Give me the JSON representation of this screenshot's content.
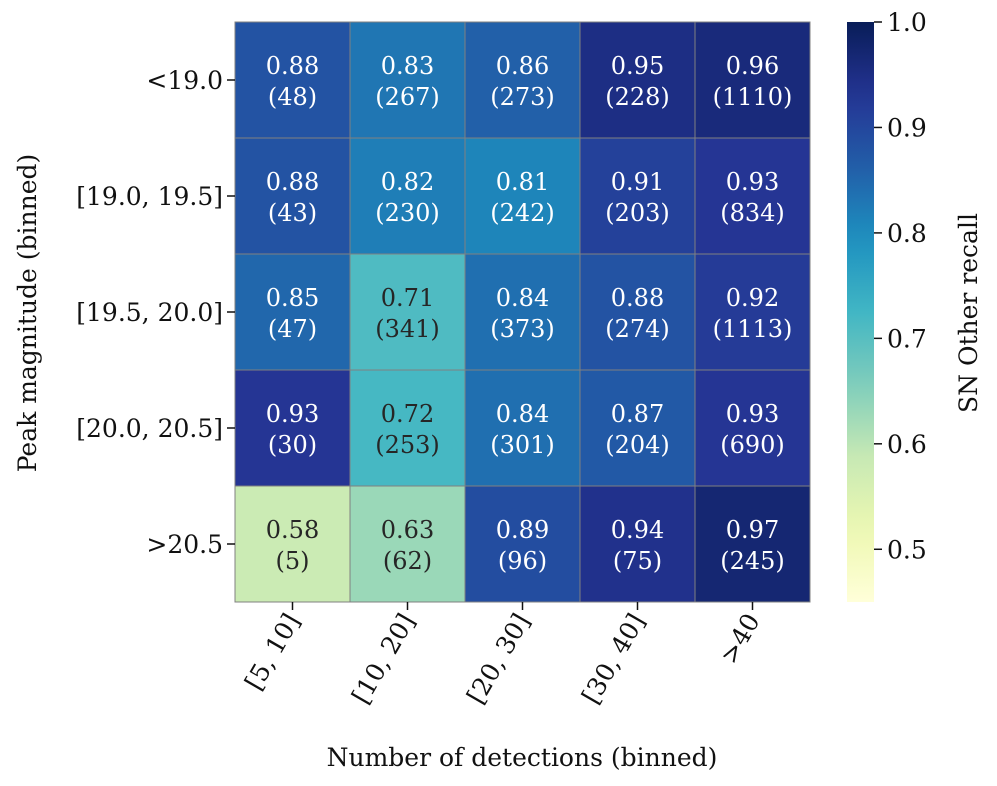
{
  "chart_data": {
    "type": "heatmap",
    "title": "",
    "xlabel": "Number of detections (binned)",
    "ylabel": "Peak magnitude (binned)",
    "x_categories": [
      "[5, 10]",
      "[10, 20]",
      "[20, 30]",
      "[30, 40]",
      ">40"
    ],
    "y_categories": [
      "<19.0",
      "[19.0, 19.5]",
      "[19.5, 20.0]",
      "[20.0, 20.5]",
      ">20.5"
    ],
    "values": [
      [
        0.88,
        0.83,
        0.86,
        0.95,
        0.96
      ],
      [
        0.88,
        0.82,
        0.81,
        0.91,
        0.93
      ],
      [
        0.85,
        0.71,
        0.84,
        0.88,
        0.92
      ],
      [
        0.93,
        0.72,
        0.84,
        0.87,
        0.93
      ],
      [
        0.58,
        0.63,
        0.89,
        0.94,
        0.97
      ]
    ],
    "counts": [
      [
        48,
        267,
        273,
        228,
        1110
      ],
      [
        43,
        230,
        242,
        203,
        834
      ],
      [
        47,
        341,
        373,
        274,
        1113
      ],
      [
        30,
        253,
        301,
        204,
        690
      ],
      [
        5,
        62,
        96,
        75,
        245
      ]
    ],
    "colorbar": {
      "label": "SN Other recall",
      "vmin": 0.45,
      "vmax": 1.0,
      "ticks": [
        0.5,
        0.6,
        0.7,
        0.8,
        0.9,
        1.0
      ],
      "colormap": "YlGnBu"
    }
  }
}
